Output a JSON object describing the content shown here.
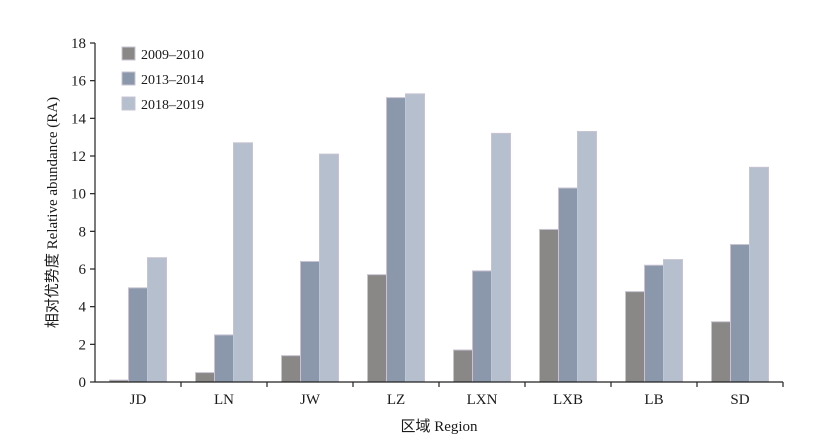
{
  "chart_data": {
    "type": "bar",
    "title": "",
    "xlabel": "区域 Region",
    "ylabel": "相对优势度 Relative abundance (RA)",
    "ylim": [
      0,
      18
    ],
    "yticks": [
      0,
      2,
      4,
      6,
      8,
      10,
      12,
      14,
      16,
      18
    ],
    "grid": false,
    "legend_position": "top-left",
    "categories": [
      "JD",
      "LN",
      "JW",
      "LZ",
      "LXN",
      "LXB",
      "LB",
      "SD"
    ],
    "series": [
      {
        "name": "2009–2010",
        "color": "#8a8886",
        "values": [
          0.1,
          0.5,
          1.4,
          5.7,
          1.7,
          8.1,
          4.8,
          3.2
        ]
      },
      {
        "name": "2013–2014",
        "color": "#8b97ab",
        "values": [
          5.0,
          2.5,
          6.4,
          15.1,
          5.9,
          10.3,
          6.2,
          7.3
        ]
      },
      {
        "name": "2018–2019",
        "color": "#b5bfce",
        "values": [
          6.6,
          12.7,
          12.1,
          15.3,
          13.2,
          13.3,
          6.5,
          11.4
        ]
      }
    ]
  }
}
